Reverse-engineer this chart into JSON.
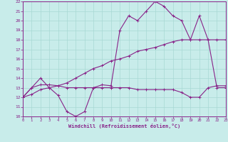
{
  "line1_x": [
    0,
    1,
    2,
    3,
    4,
    5,
    6,
    7,
    8,
    9,
    10,
    11,
    12,
    13,
    14,
    15,
    16,
    17,
    18,
    19,
    20,
    21,
    22,
    23
  ],
  "line1_y": [
    12,
    13,
    14,
    13,
    12.2,
    10.5,
    10,
    10.5,
    13,
    13.3,
    13.2,
    19,
    20.5,
    20,
    21,
    22,
    21.5,
    20.5,
    20,
    18,
    20.5,
    18,
    13,
    13
  ],
  "line2_x": [
    0,
    1,
    2,
    3,
    4,
    5,
    6,
    7,
    8,
    9,
    10,
    11,
    12,
    13,
    14,
    15,
    16,
    17,
    18,
    19,
    20,
    21,
    22,
    23
  ],
  "line2_y": [
    12,
    12.3,
    12.8,
    13,
    13.2,
    13.5,
    14,
    14.5,
    15,
    15.3,
    15.8,
    16,
    16.3,
    16.8,
    17,
    17.2,
    17.5,
    17.8,
    18,
    18,
    18,
    18,
    18,
    18
  ],
  "line3_x": [
    0,
    1,
    2,
    3,
    4,
    5,
    6,
    7,
    8,
    9,
    10,
    11,
    12,
    13,
    14,
    15,
    16,
    17,
    18,
    19,
    20,
    21,
    22,
    23
  ],
  "line3_y": [
    12,
    13,
    13.3,
    13.3,
    13.2,
    13,
    13,
    13,
    13,
    13,
    13,
    13,
    13,
    12.8,
    12.8,
    12.8,
    12.8,
    12.8,
    12.5,
    12,
    12,
    13,
    13.2,
    13.2
  ],
  "color": "#882288",
  "bg_color": "#C8ECEA",
  "grid_color": "#A8D8D4",
  "xlabel": "Windchill (Refroidissement éolien,°C)",
  "ylim": [
    10,
    22
  ],
  "xlim": [
    0,
    23
  ],
  "yticks": [
    10,
    11,
    12,
    13,
    14,
    15,
    16,
    17,
    18,
    19,
    20,
    21,
    22
  ],
  "xticks": [
    0,
    1,
    2,
    3,
    4,
    5,
    6,
    7,
    8,
    9,
    10,
    11,
    12,
    13,
    14,
    15,
    16,
    17,
    18,
    19,
    20,
    21,
    22,
    23
  ]
}
